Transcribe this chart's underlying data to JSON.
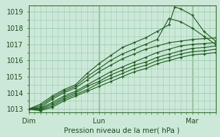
{
  "title": "Pression niveau de la mer( hPa )",
  "background_color": "#cce8d8",
  "grid_color": "#99ccaa",
  "line_color": "#1e5e1e",
  "ylim": [
    1012.8,
    1019.4
  ],
  "xlim": [
    0,
    96
  ],
  "xtick_positions": [
    0,
    36,
    84
  ],
  "xtick_labels": [
    "Dim",
    "Lun",
    "Mar"
  ],
  "ytick_positions": [
    1013,
    1014,
    1015,
    1016,
    1017,
    1018,
    1019
  ],
  "series": [
    {
      "pts": [
        [
          0,
          1013.0
        ],
        [
          6,
          1013.3
        ],
        [
          12,
          1013.8
        ],
        [
          18,
          1014.2
        ],
        [
          24,
          1014.5
        ],
        [
          30,
          1015.2
        ],
        [
          36,
          1015.8
        ],
        [
          42,
          1016.3
        ],
        [
          48,
          1016.8
        ],
        [
          54,
          1017.1
        ],
        [
          60,
          1017.4
        ],
        [
          66,
          1017.8
        ],
        [
          72,
          1018.2
        ],
        [
          75,
          1019.3
        ],
        [
          78,
          1019.2
        ],
        [
          84,
          1018.8
        ],
        [
          90,
          1017.8
        ],
        [
          96,
          1017.2
        ]
      ]
    },
    {
      "pts": [
        [
          0,
          1013.0
        ],
        [
          6,
          1013.2
        ],
        [
          12,
          1013.7
        ],
        [
          18,
          1014.1
        ],
        [
          24,
          1014.4
        ],
        [
          30,
          1015.0
        ],
        [
          36,
          1015.5
        ],
        [
          42,
          1016.0
        ],
        [
          48,
          1016.4
        ],
        [
          54,
          1016.7
        ],
        [
          60,
          1017.0
        ],
        [
          66,
          1017.3
        ],
        [
          72,
          1018.6
        ],
        [
          78,
          1018.4
        ],
        [
          84,
          1018.0
        ],
        [
          90,
          1017.5
        ],
        [
          96,
          1017.0
        ]
      ]
    },
    {
      "pts": [
        [
          0,
          1013.0
        ],
        [
          6,
          1013.1
        ],
        [
          12,
          1013.6
        ],
        [
          18,
          1014.0
        ],
        [
          24,
          1014.3
        ],
        [
          30,
          1014.8
        ],
        [
          36,
          1015.3
        ],
        [
          42,
          1015.7
        ],
        [
          48,
          1016.1
        ],
        [
          54,
          1016.4
        ],
        [
          60,
          1016.7
        ],
        [
          66,
          1016.9
        ],
        [
          72,
          1017.1
        ],
        [
          78,
          1017.2
        ],
        [
          84,
          1017.3
        ],
        [
          90,
          1017.35
        ],
        [
          96,
          1017.4
        ]
      ]
    },
    {
      "pts": [
        [
          0,
          1013.0
        ],
        [
          6,
          1013.05
        ],
        [
          12,
          1013.4
        ],
        [
          18,
          1013.8
        ],
        [
          24,
          1014.1
        ],
        [
          30,
          1014.5
        ],
        [
          36,
          1014.9
        ],
        [
          42,
          1015.3
        ],
        [
          48,
          1015.6
        ],
        [
          54,
          1015.9
        ],
        [
          60,
          1016.2
        ],
        [
          66,
          1016.5
        ],
        [
          72,
          1016.7
        ],
        [
          78,
          1016.9
        ],
        [
          84,
          1017.0
        ],
        [
          90,
          1017.05
        ],
        [
          96,
          1017.1
        ]
      ]
    },
    {
      "pts": [
        [
          0,
          1013.0
        ],
        [
          6,
          1013.0
        ],
        [
          12,
          1013.3
        ],
        [
          18,
          1013.7
        ],
        [
          24,
          1014.0
        ],
        [
          30,
          1014.4
        ],
        [
          36,
          1014.7
        ],
        [
          42,
          1015.1
        ],
        [
          48,
          1015.4
        ],
        [
          54,
          1015.7
        ],
        [
          60,
          1015.9
        ],
        [
          66,
          1016.2
        ],
        [
          72,
          1016.4
        ],
        [
          78,
          1016.6
        ],
        [
          84,
          1016.75
        ],
        [
          90,
          1016.8
        ],
        [
          96,
          1016.9
        ]
      ]
    },
    {
      "pts": [
        [
          0,
          1013.0
        ],
        [
          6,
          1012.95
        ],
        [
          12,
          1013.2
        ],
        [
          18,
          1013.6
        ],
        [
          24,
          1013.9
        ],
        [
          30,
          1014.2
        ],
        [
          36,
          1014.6
        ],
        [
          42,
          1014.9
        ],
        [
          48,
          1015.2
        ],
        [
          54,
          1015.5
        ],
        [
          60,
          1015.7
        ],
        [
          66,
          1016.0
        ],
        [
          72,
          1016.2
        ],
        [
          78,
          1016.4
        ],
        [
          84,
          1016.55
        ],
        [
          90,
          1016.6
        ],
        [
          96,
          1016.7
        ]
      ]
    },
    {
      "pts": [
        [
          0,
          1013.0
        ],
        [
          6,
          1012.9
        ],
        [
          12,
          1013.1
        ],
        [
          18,
          1013.5
        ],
        [
          24,
          1013.8
        ],
        [
          30,
          1014.1
        ],
        [
          36,
          1014.4
        ],
        [
          42,
          1014.7
        ],
        [
          48,
          1015.0
        ],
        [
          54,
          1015.3
        ],
        [
          60,
          1015.5
        ],
        [
          66,
          1015.8
        ],
        [
          72,
          1016.0
        ],
        [
          78,
          1016.2
        ],
        [
          84,
          1016.35
        ],
        [
          90,
          1016.4
        ],
        [
          96,
          1016.5
        ]
      ]
    }
  ]
}
